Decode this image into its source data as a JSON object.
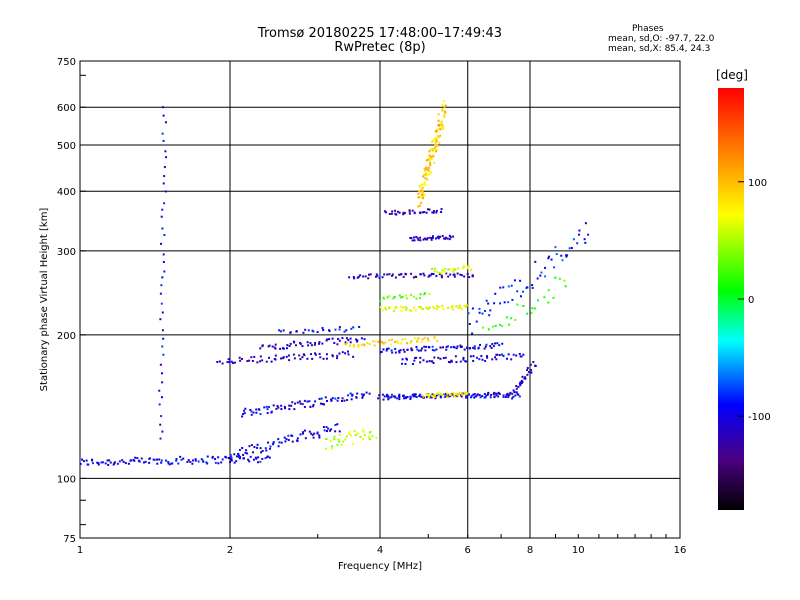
{
  "chart_data": {
    "type": "scatter",
    "title": "Tromsø 20180225 17:48:00–17:49:43",
    "subtitle": "RwPretec (8p)",
    "xlabel": "Frequency [MHz]",
    "ylabel": "Stationary phase Virtual Height [km]",
    "x_scale": "log",
    "y_scale": "log",
    "xlim": [
      1,
      16
    ],
    "ylim": [
      75,
      750
    ],
    "x_ticks": [
      1,
      2,
      4,
      6,
      8,
      10,
      16
    ],
    "y_ticks": [
      75,
      100,
      200,
      300,
      400,
      500,
      600,
      750
    ],
    "x_gridlines": [
      2,
      4,
      6,
      8
    ],
    "y_gridlines": [
      100,
      200,
      300,
      400,
      500,
      600
    ],
    "grid": true,
    "phases_box": {
      "title": "Phases",
      "line1": "mean, sd,O: -97.7, 22.0",
      "line2": "mean, sd,X:  85.4, 24.3"
    },
    "colorbar": {
      "label": "[deg]",
      "ticks": [
        100,
        0,
        -100
      ],
      "range": [
        -180,
        180
      ],
      "colormap": "rainbow (black-purple-blue-cyan-green-yellow-red)"
    },
    "traces": [
      {
        "name": "",
        "phase": -100,
        "x0": 1.0,
        "x1": 2.4,
        "h0": 108,
        "h1": 110,
        "n": 110,
        "spread": 0.018
      },
      {
        "name": "",
        "phase": -100,
        "x0": 2.0,
        "x1": 3.3,
        "h0": 112,
        "h1": 128,
        "n": 70,
        "spread": 0.025
      },
      {
        "name": "",
        "phase": 50,
        "x0": 3.1,
        "x1": 3.9,
        "h0": 118,
        "h1": 125,
        "n": 35,
        "spread": 0.03
      },
      {
        "name": "",
        "phase": -100,
        "x0": 2.1,
        "x1": 3.8,
        "h0": 137,
        "h1": 150,
        "n": 80,
        "spread": 0.02
      },
      {
        "name": "",
        "phase": -100,
        "x0": 4.0,
        "x1": 7.6,
        "h0": 148,
        "h1": 150,
        "n": 140,
        "spread": 0.012
      },
      {
        "name": "",
        "phase": 80,
        "x0": 4.9,
        "x1": 6.0,
        "h0": 149,
        "h1": 150,
        "n": 40,
        "spread": 0.01
      },
      {
        "name": "",
        "phase": -110,
        "x0": 7.4,
        "x1": 8.2,
        "h0": 150,
        "h1": 175,
        "n": 30,
        "spread": 0.02
      },
      {
        "name": "",
        "phase": -110,
        "x0": 1.9,
        "x1": 3.5,
        "h0": 176,
        "h1": 182,
        "n": 60,
        "spread": 0.015
      },
      {
        "name": "",
        "phase": -110,
        "x0": 2.3,
        "x1": 3.7,
        "h0": 188,
        "h1": 196,
        "n": 50,
        "spread": 0.015
      },
      {
        "name": "",
        "phase": -100,
        "x0": 4.0,
        "x1": 7.0,
        "h0": 185,
        "h1": 190,
        "n": 70,
        "spread": 0.012
      },
      {
        "name": "",
        "phase": 85,
        "x0": 3.4,
        "x1": 5.2,
        "h0": 190,
        "h1": 196,
        "n": 45,
        "spread": 0.012
      },
      {
        "name": "",
        "phase": -105,
        "x0": 4.4,
        "x1": 7.8,
        "h0": 176,
        "h1": 180,
        "n": 60,
        "spread": 0.015
      },
      {
        "name": "",
        "phase": -100,
        "x0": 2.5,
        "x1": 3.6,
        "h0": 203,
        "h1": 206,
        "n": 25,
        "spread": 0.012
      },
      {
        "name": "",
        "phase": 70,
        "x0": 4.0,
        "x1": 6.0,
        "h0": 226,
        "h1": 228,
        "n": 50,
        "spread": 0.012
      },
      {
        "name": "",
        "phase": 30,
        "x0": 4.0,
        "x1": 5.0,
        "h0": 238,
        "h1": 242,
        "n": 20,
        "spread": 0.012
      },
      {
        "name": "",
        "phase": -115,
        "x0": 3.5,
        "x1": 6.2,
        "h0": 265,
        "h1": 267,
        "n": 60,
        "spread": 0.01
      },
      {
        "name": "",
        "phase": 65,
        "x0": 5.1,
        "x1": 6.1,
        "h0": 272,
        "h1": 276,
        "n": 25,
        "spread": 0.012
      },
      {
        "name": "",
        "phase": -110,
        "x0": 4.6,
        "x1": 5.6,
        "h0": 318,
        "h1": 320,
        "n": 35,
        "spread": 0.01
      },
      {
        "name": "",
        "phase": -115,
        "x0": 4.1,
        "x1": 5.3,
        "h0": 360,
        "h1": 364,
        "n": 35,
        "spread": 0.01
      },
      {
        "name": "",
        "phase": 90,
        "x0": 4.8,
        "x1": 5.4,
        "h0": 380,
        "h1": 600,
        "n": 120,
        "spread": 0.05
      },
      {
        "name": "",
        "phase": -100,
        "x0": 1.45,
        "x1": 1.48,
        "h0": 120,
        "h1": 600,
        "n": 40,
        "spread": 0.01
      },
      {
        "name": "",
        "phase": -90,
        "x0": 6.0,
        "x1": 10.5,
        "h0": 210,
        "h1": 330,
        "n": 60,
        "spread": 0.06
      },
      {
        "name": "",
        "phase": 20,
        "x0": 6.5,
        "x1": 9.5,
        "h0": 200,
        "h1": 260,
        "n": 25,
        "spread": 0.05
      }
    ]
  }
}
